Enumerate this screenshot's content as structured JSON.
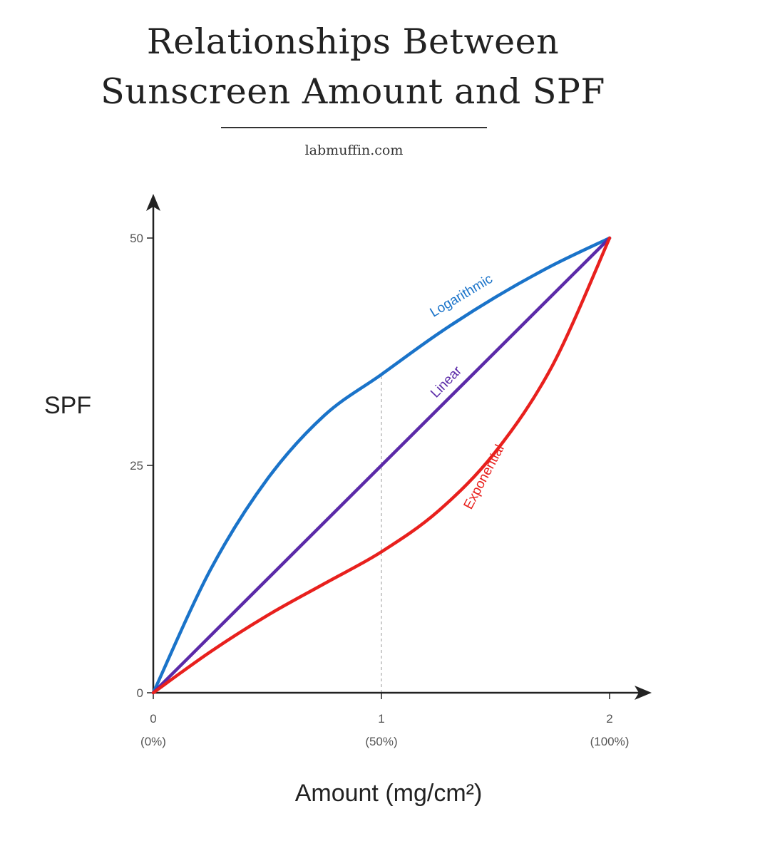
{
  "header": {
    "title_line1": "Relationships Between",
    "title_line2": "Sunscreen Amount and SPF",
    "source": "labmuffin.com"
  },
  "chart_data": {
    "type": "line",
    "title": "Relationships Between Sunscreen Amount and SPF",
    "xlabel": "Amount (mg/cm²)",
    "ylabel": "SPF",
    "xlim": [
      0,
      2
    ],
    "ylim": [
      0,
      50
    ],
    "x_ticks": [
      {
        "value": 0,
        "label": "0",
        "sublabel": "(0%)"
      },
      {
        "value": 1,
        "label": "1",
        "sublabel": "(50%)"
      },
      {
        "value": 2,
        "label": "2",
        "sublabel": "(100%)"
      }
    ],
    "y_ticks": [
      {
        "value": 0,
        "label": "0"
      },
      {
        "value": 25,
        "label": "25"
      },
      {
        "value": 50,
        "label": "50"
      }
    ],
    "reference_line": {
      "x": 1,
      "style": "dotted"
    },
    "x": [
      0,
      0.25,
      0.5,
      0.75,
      1,
      1.25,
      1.5,
      1.75,
      2
    ],
    "series": [
      {
        "name": "Logarithmic",
        "color": "#1a73c9",
        "values": [
          0,
          13.5,
          23.5,
          30.5,
          35,
          39.5,
          43.5,
          47,
          50
        ]
      },
      {
        "name": "Linear",
        "color": "#5b2aa8",
        "values": [
          0,
          6.25,
          12.5,
          18.75,
          25,
          31.25,
          37.5,
          43.75,
          50
        ]
      },
      {
        "name": "Exponential",
        "color": "#e8201d",
        "values": [
          0,
          4.5,
          8.5,
          12,
          15.5,
          20,
          26.5,
          36,
          50
        ]
      }
    ]
  }
}
